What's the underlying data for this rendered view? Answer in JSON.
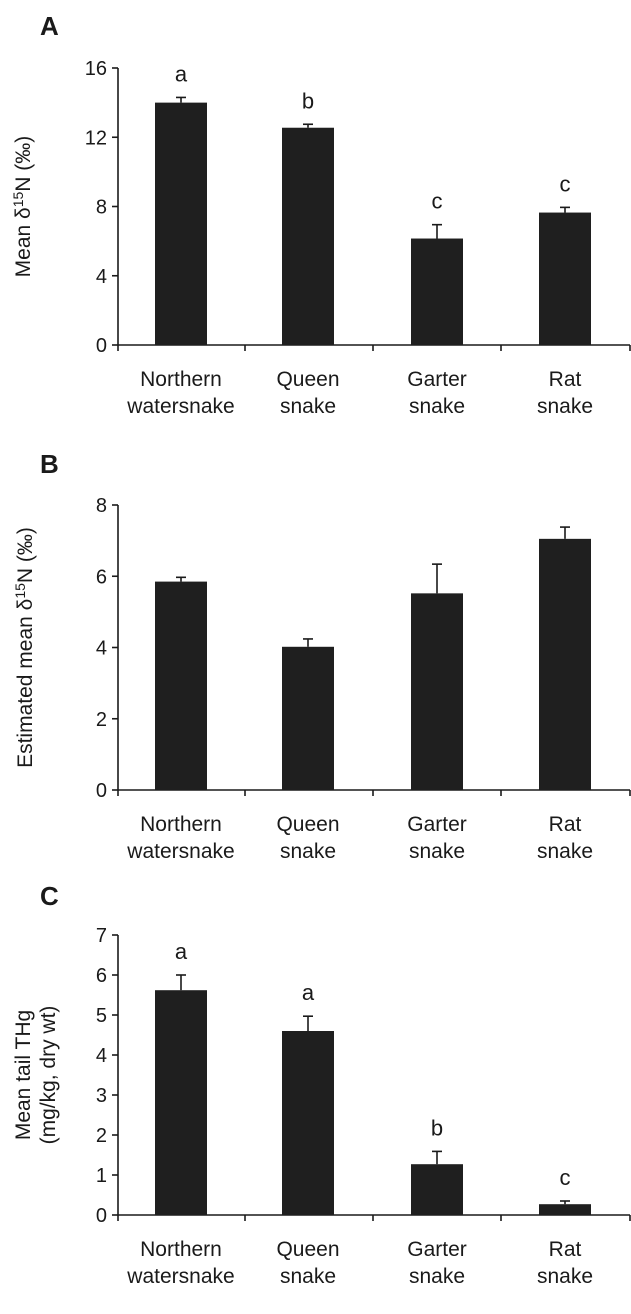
{
  "chart_data": [
    {
      "type": "bar",
      "panel": "A",
      "categories": [
        [
          "Northern",
          "watersnake"
        ],
        [
          "Queen",
          "snake"
        ],
        [
          "Garter",
          "snake"
        ],
        [
          "Rat",
          "snake"
        ]
      ],
      "values": [
        14.0,
        12.55,
        6.15,
        7.65
      ],
      "errors": [
        0.3,
        0.2,
        0.8,
        0.3
      ],
      "significance": [
        "a",
        "b",
        "c",
        "c"
      ],
      "ylabel": {
        "pre": "Mean δ",
        "sup": "15",
        "post": "N (‰)"
      },
      "ylim": [
        0,
        16
      ],
      "yticks": [
        0,
        4,
        8,
        12,
        16
      ]
    },
    {
      "type": "bar",
      "panel": "B",
      "categories": [
        [
          "Northern",
          "watersnake"
        ],
        [
          "Queen",
          "snake"
        ],
        [
          "Garter",
          "snake"
        ],
        [
          "Rat",
          "snake"
        ]
      ],
      "values": [
        5.85,
        4.02,
        5.52,
        7.05
      ],
      "errors": [
        0.12,
        0.22,
        0.82,
        0.33
      ],
      "significance": [],
      "ylabel": {
        "pre": "Estimated mean δ",
        "sup": "15",
        "post": "N (‰)"
      },
      "ylim": [
        0,
        8
      ],
      "yticks": [
        0,
        2,
        4,
        6,
        8
      ]
    },
    {
      "type": "bar",
      "panel": "C",
      "categories": [
        [
          "Northern",
          "watersnake"
        ],
        [
          "Queen",
          "snake"
        ],
        [
          "Garter",
          "snake"
        ],
        [
          "Rat",
          "snake"
        ]
      ],
      "values": [
        5.62,
        4.6,
        1.27,
        0.27
      ],
      "errors": [
        0.38,
        0.37,
        0.32,
        0.08
      ],
      "significance": [
        "a",
        "a",
        "b",
        "c"
      ],
      "ylabel": {
        "lines": [
          "Mean tail THg",
          "(mg/kg, dry wt)"
        ]
      },
      "ylim": [
        0,
        7
      ],
      "yticks": [
        0,
        1,
        2,
        3,
        4,
        5,
        6,
        7
      ]
    }
  ]
}
